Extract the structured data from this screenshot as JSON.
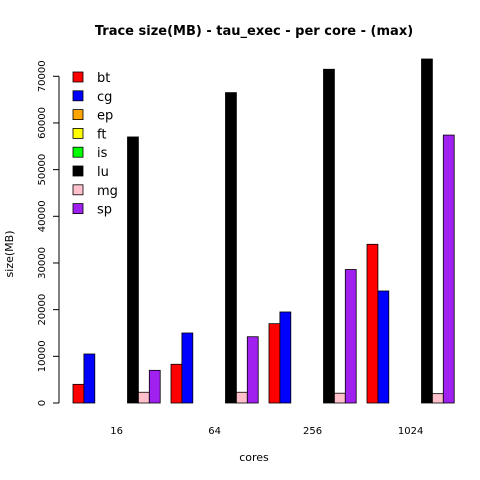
{
  "chart_data": {
    "type": "bar",
    "title": "Trace size(MB) - tau_exec - per core - (max)",
    "xlabel": "cores",
    "ylabel": "size(MB)",
    "categories": [
      "16",
      "64",
      "256",
      "1024"
    ],
    "ylim": [
      0,
      73700
    ],
    "yticks": [
      0,
      10000,
      20000,
      30000,
      40000,
      50000,
      60000,
      70000
    ],
    "grid": false,
    "legend_position": "top-left",
    "series": [
      {
        "name": "bt",
        "color": "#ff0000",
        "values": [
          4000,
          8300,
          17000,
          34000
        ]
      },
      {
        "name": "cg",
        "color": "#0000ff",
        "values": [
          10500,
          15000,
          19500,
          24000
        ]
      },
      {
        "name": "ep",
        "color": "#ffa500",
        "values": [
          0,
          0,
          0,
          0
        ]
      },
      {
        "name": "ft",
        "color": "#ffff00",
        "values": [
          0,
          0,
          0,
          0
        ]
      },
      {
        "name": "is",
        "color": "#00ff00",
        "values": [
          0,
          0,
          0,
          0
        ]
      },
      {
        "name": "lu",
        "color": "#000000",
        "values": [
          57000,
          66500,
          71500,
          73700
        ]
      },
      {
        "name": "mg",
        "color": "#ffc0cb",
        "values": [
          2300,
          2300,
          2100,
          2000
        ]
      },
      {
        "name": "sp",
        "color": "#a020f0",
        "values": [
          7000,
          14200,
          28600,
          57400
        ]
      }
    ]
  }
}
